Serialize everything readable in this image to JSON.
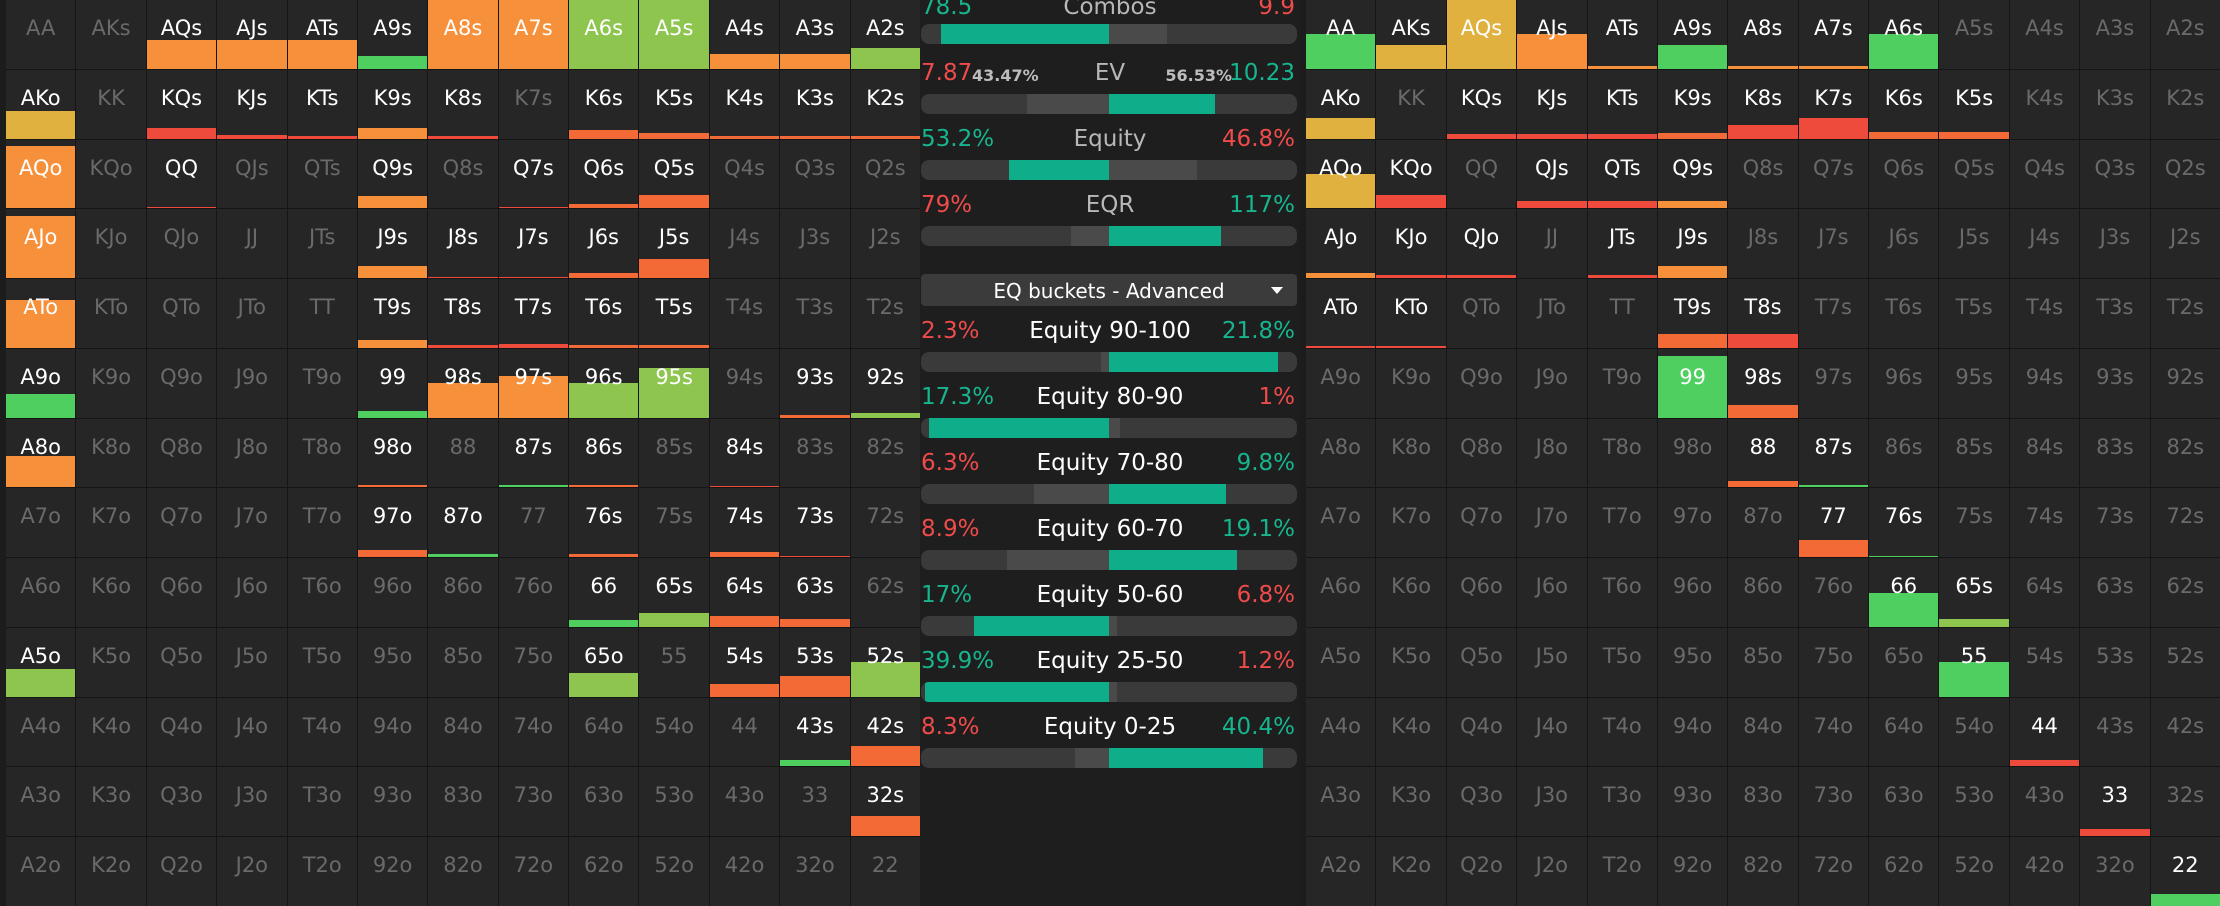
{
  "colors": {
    "orange": "#f7903a",
    "lightgreen": "#8ec54f",
    "green": "#4fcf5f",
    "red": "#ef4b3c",
    "orangered": "#f36a37",
    "yellow": "#e0b13e",
    "teal": "#0fae8a"
  },
  "stats": {
    "combos": {
      "left": "78.5",
      "label": "Combos",
      "right": "9.9",
      "bar": [
        0.05,
        0.62,
        0.02
      ]
    },
    "ev": {
      "left": "7.87",
      "left_pct": "43.47%",
      "label": "EV",
      "right_pct": "56.53%",
      "right": "10.23",
      "bar": [
        0.28,
        0.5,
        0.28
      ]
    },
    "equity": {
      "left": "53.2%",
      "label": "Equity",
      "right": "46.8%",
      "bar": [
        0.23,
        0.5,
        0.23
      ]
    },
    "eqr": {
      "left": "79%",
      "label": "EQR",
      "right": "117%",
      "bar": [
        0.4,
        0.5,
        0.3
      ]
    }
  },
  "dropdown": {
    "label": "EQ buckets - Advanced"
  },
  "buckets": [
    {
      "label": "Equity 90-100",
      "left": "2.3%",
      "right": "21.8%",
      "left_frac": 0.02,
      "right_frac": 0.45
    },
    {
      "label": "Equity 80-90",
      "left": "17.3%",
      "right": "1%",
      "left_frac": 0.48,
      "right_frac": 0.03
    },
    {
      "label": "Equity 70-80",
      "left": "6.3%",
      "right": "9.8%",
      "left_frac": 0.2,
      "right_frac": 0.31
    },
    {
      "label": "Equity 60-70",
      "left": "8.9%",
      "right": "19.1%",
      "left_frac": 0.27,
      "right_frac": 0.34
    },
    {
      "label": "Equity 50-60",
      "left": "17%",
      "right": "6.8%",
      "left_frac": 0.36,
      "right_frac": 0.02
    },
    {
      "label": "Equity 25-50",
      "left": "39.9%",
      "right": "1.2%",
      "left_frac": 0.49,
      "right_frac": 0.02
    },
    {
      "label": "Equity 0-25",
      "left": "8.3%",
      "right": "40.4%",
      "left_frac": 0.09,
      "right_frac": 0.41
    }
  ],
  "hands": [
    [
      "AA",
      "AKs",
      "AQs",
      "AJs",
      "ATs",
      "A9s",
      "A8s",
      "A7s",
      "A6s",
      "A5s",
      "A4s",
      "A3s",
      "A2s"
    ],
    [
      "AKo",
      "KK",
      "KQs",
      "KJs",
      "KTs",
      "K9s",
      "K8s",
      "K7s",
      "K6s",
      "K5s",
      "K4s",
      "K3s",
      "K2s"
    ],
    [
      "AQo",
      "KQo",
      "QQ",
      "QJs",
      "QTs",
      "Q9s",
      "Q8s",
      "Q7s",
      "Q6s",
      "Q5s",
      "Q4s",
      "Q3s",
      "Q2s"
    ],
    [
      "AJo",
      "KJo",
      "QJo",
      "JJ",
      "JTs",
      "J9s",
      "J8s",
      "J7s",
      "J6s",
      "J5s",
      "J4s",
      "J3s",
      "J2s"
    ],
    [
      "ATo",
      "KTo",
      "QTo",
      "JTo",
      "TT",
      "T9s",
      "T8s",
      "T7s",
      "T6s",
      "T5s",
      "T4s",
      "T3s",
      "T2s"
    ],
    [
      "A9o",
      "K9o",
      "Q9o",
      "J9o",
      "T9o",
      "99",
      "98s",
      "97s",
      "96s",
      "95s",
      "94s",
      "93s",
      "92s"
    ],
    [
      "A8o",
      "K8o",
      "Q8o",
      "J8o",
      "T8o",
      "98o",
      "88",
      "87s",
      "86s",
      "85s",
      "84s",
      "83s",
      "82s"
    ],
    [
      "A7o",
      "K7o",
      "Q7o",
      "J7o",
      "T7o",
      "97o",
      "87o",
      "77",
      "76s",
      "75s",
      "74s",
      "73s",
      "72s"
    ],
    [
      "A6o",
      "K6o",
      "Q6o",
      "J6o",
      "T6o",
      "96o",
      "86o",
      "76o",
      "66",
      "65s",
      "64s",
      "63s",
      "62s"
    ],
    [
      "A5o",
      "K5o",
      "Q5o",
      "J5o",
      "T5o",
      "95o",
      "85o",
      "75o",
      "65o",
      "55",
      "54s",
      "53s",
      "52s"
    ],
    [
      "A4o",
      "K4o",
      "Q4o",
      "J4o",
      "T4o",
      "94o",
      "84o",
      "74o",
      "64o",
      "54o",
      "44",
      "43s",
      "42s"
    ],
    [
      "A3o",
      "K3o",
      "Q3o",
      "J3o",
      "T3o",
      "93o",
      "83o",
      "73o",
      "63o",
      "53o",
      "43o",
      "33",
      "32s"
    ],
    [
      "A2o",
      "K2o",
      "Q2o",
      "J2o",
      "T2o",
      "92o",
      "82o",
      "72o",
      "62o",
      "52o",
      "42o",
      "32o",
      "22"
    ]
  ],
  "left_range": {
    "AQs": [
      "orange",
      0.42
    ],
    "AJs": [
      "orange",
      0.42
    ],
    "ATs": [
      "orange",
      0.42
    ],
    "A9s": [
      "green",
      0.18
    ],
    "A8s": [
      "orange",
      1
    ],
    "A7s": [
      "orange",
      1
    ],
    "A6s": [
      "lightgreen",
      1
    ],
    "A5s": [
      "lightgreen",
      1
    ],
    "A4s": [
      "orange",
      0.22
    ],
    "A3s": [
      "orange",
      0.22
    ],
    "A2s": [
      "lightgreen",
      0.3
    ],
    "AKo": [
      "yellow",
      0.4
    ],
    "KQs": [
      "red",
      0.15
    ],
    "KJs": [
      "red",
      0.05
    ],
    "KTs": [
      "red",
      0.02
    ],
    "K9s": [
      "orange",
      0.15
    ],
    "K8s": [
      "red",
      0.02
    ],
    "K6s": [
      "orangered",
      0.12
    ],
    "K5s": [
      "orangered",
      0.08
    ],
    "K4s": [
      "orangered",
      0.04
    ],
    "K3s": [
      "orangered",
      0.04
    ],
    "K2s": [
      "orangered",
      0.04
    ],
    "AQo": [
      "orange",
      0.9
    ],
    "QQ": [
      "red",
      0.0
    ],
    "Q9s": [
      "orange",
      0.18
    ],
    "Q7s": [
      "red",
      0.0
    ],
    "Q6s": [
      "orangered",
      0.06
    ],
    "Q5s": [
      "orangered",
      0.2
    ],
    "AJo": [
      "orange",
      0.9
    ],
    "J9s": [
      "orange",
      0.18
    ],
    "J8s": [
      "red",
      0.0
    ],
    "J7s": [
      "red",
      0.0
    ],
    "J6s": [
      "orangered",
      0.08
    ],
    "J5s": [
      "orangered",
      0.28
    ],
    "ATo": [
      "orange",
      0.7
    ],
    "T9s": [
      "orange",
      0.12
    ],
    "T8s": [
      "red",
      0.04
    ],
    "T7s": [
      "red",
      0.06
    ],
    "T6s": [
      "orangered",
      0.04
    ],
    "T5s": [
      "orangered",
      0.04
    ],
    "A9o": [
      "green",
      0.35
    ],
    "99": [
      "green",
      0.1
    ],
    "98s": [
      "orange",
      0.5
    ],
    "97s": [
      "orange",
      0.6
    ],
    "96s": [
      "lightgreen",
      0.5
    ],
    "95s": [
      "lightgreen",
      0.72
    ],
    "93s": [
      "orangered",
      0.04
    ],
    "92s": [
      "lightgreen",
      0.06
    ],
    "A8o": [
      "orange",
      0.45
    ],
    "98o": [
      "orangered",
      0.04
    ],
    "87s": [
      "green",
      0.02
    ],
    "86s": [
      "orangered",
      0.02
    ],
    "84s": [
      "red",
      0.0
    ],
    "97o": [
      "orangered",
      0.1
    ],
    "87o": [
      "green",
      0.04
    ],
    "76s": [
      "orangered",
      0.04
    ],
    "74s": [
      "orangered",
      0.08
    ],
    "73s": [
      "red",
      0.0
    ],
    "66": [
      "green",
      0.1
    ],
    "65s": [
      "lightgreen",
      0.2
    ],
    "64s": [
      "orangered",
      0.16
    ],
    "63s": [
      "orangered",
      0.12
    ],
    "A5o": [
      "lightgreen",
      0.4
    ],
    "65o": [
      "lightgreen",
      0.35
    ],
    "54s": [
      "orangered",
      0.18
    ],
    "53s": [
      "orangered",
      0.3
    ],
    "52s": [
      "lightgreen",
      0.5
    ],
    "43s": [
      "green",
      0.1
    ],
    "42s": [
      "orangered",
      0.3
    ],
    "32s": [
      "orangered",
      0.3
    ]
  },
  "right_range": {
    "AA": [
      "green",
      0.5
    ],
    "AKs": [
      "yellow",
      0.35
    ],
    "AQs": [
      "yellow",
      1
    ],
    "AJs": [
      "orange",
      0.5
    ],
    "ATs": [
      "orange",
      0.04
    ],
    "A9s": [
      "green",
      0.35
    ],
    "A8s": [
      "orange",
      0.02
    ],
    "A7s": [
      "orange",
      0.02
    ],
    "A6s": [
      "green",
      0.5
    ],
    "AKo": [
      "yellow",
      0.3
    ],
    "KQs": [
      "red",
      0.06
    ],
    "KJs": [
      "red",
      0.06
    ],
    "KTs": [
      "red",
      0.06
    ],
    "K9s": [
      "orangered",
      0.08
    ],
    "K8s": [
      "red",
      0.2
    ],
    "K7s": [
      "red",
      0.3
    ],
    "K6s": [
      "orangered",
      0.1
    ],
    "K5s": [
      "orangered",
      0.1
    ],
    "AQo": [
      "yellow",
      0.5
    ],
    "KQo": [
      "red",
      0.2
    ],
    "QJs": [
      "red",
      0.1
    ],
    "QTs": [
      "red",
      0.1
    ],
    "Q9s": [
      "orange",
      0.1
    ],
    "AJo": [
      "orange",
      0.08
    ],
    "KJo": [
      "red",
      0.04
    ],
    "QJo": [
      "red",
      0.02
    ],
    "JTs": [
      "red",
      0.02
    ],
    "J9s": [
      "orange",
      0.18
    ],
    "T9s": [
      "orangered",
      0.2
    ],
    "T8s": [
      "red",
      0.2
    ],
    "ATo": [
      "red",
      0.0
    ],
    "KTo": [
      "red",
      0.0
    ],
    "99": [
      "green",
      0.9
    ],
    "98s": [
      "orangered",
      0.18
    ],
    "88": [
      "orangered",
      0.1
    ],
    "87s": [
      "green",
      0.04
    ],
    "77": [
      "orangered",
      0.25
    ],
    "76s": [
      "green",
      0.0
    ],
    "66": [
      "green",
      0.5
    ],
    "65s": [
      "lightgreen",
      0.12
    ],
    "55": [
      "green",
      0.5
    ],
    "44": [
      "red",
      0.1
    ],
    "33": [
      "red",
      0.1
    ],
    "22": [
      "green",
      0.18
    ]
  }
}
